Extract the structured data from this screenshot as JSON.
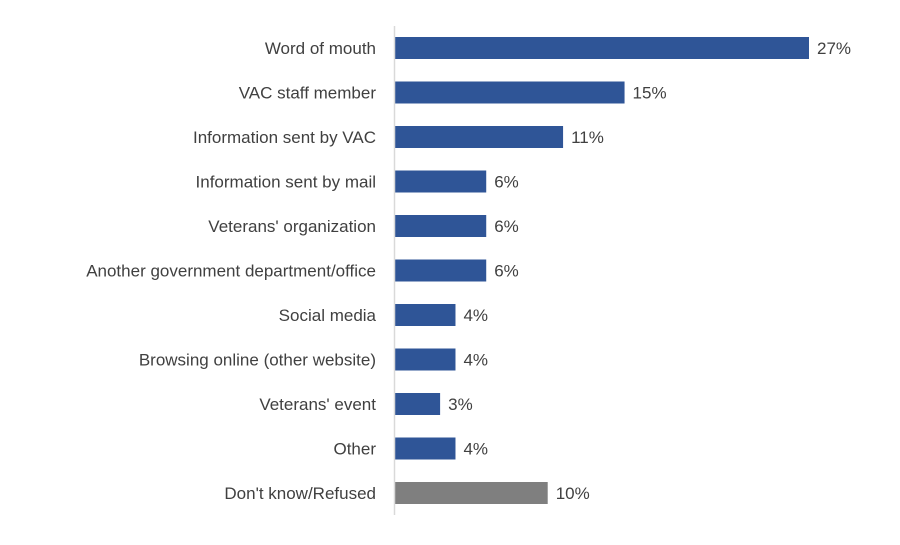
{
  "chart_data": {
    "type": "bar",
    "orientation": "horizontal",
    "title": "",
    "xlabel": "",
    "ylabel": "",
    "xlim": [
      0,
      27
    ],
    "grid": false,
    "legend": "none",
    "categories": [
      "Word of mouth",
      "VAC staff member",
      "Information sent by VAC",
      "Information sent by mail",
      "Veterans' organization",
      "Another government department/office",
      "Social media",
      "Browsing online (other website)",
      "Veterans' event",
      "Other",
      "Don't know/Refused"
    ],
    "values": [
      27,
      15,
      11,
      6,
      6,
      6,
      4,
      4,
      3,
      4,
      10
    ],
    "value_labels": [
      "27%",
      "15%",
      "11%",
      "6%",
      "6%",
      "6%",
      "4%",
      "4%",
      "3%",
      "4%",
      "10%"
    ],
    "colors": {
      "primary": "#2F5597",
      "dont_know": "#7F7F7F",
      "axis": "#D9D9D9",
      "text": "#404040"
    },
    "bar_color_index": [
      "primary",
      "primary",
      "primary",
      "primary",
      "primary",
      "primary",
      "primary",
      "primary",
      "primary",
      "primary",
      "dont_know"
    ]
  }
}
